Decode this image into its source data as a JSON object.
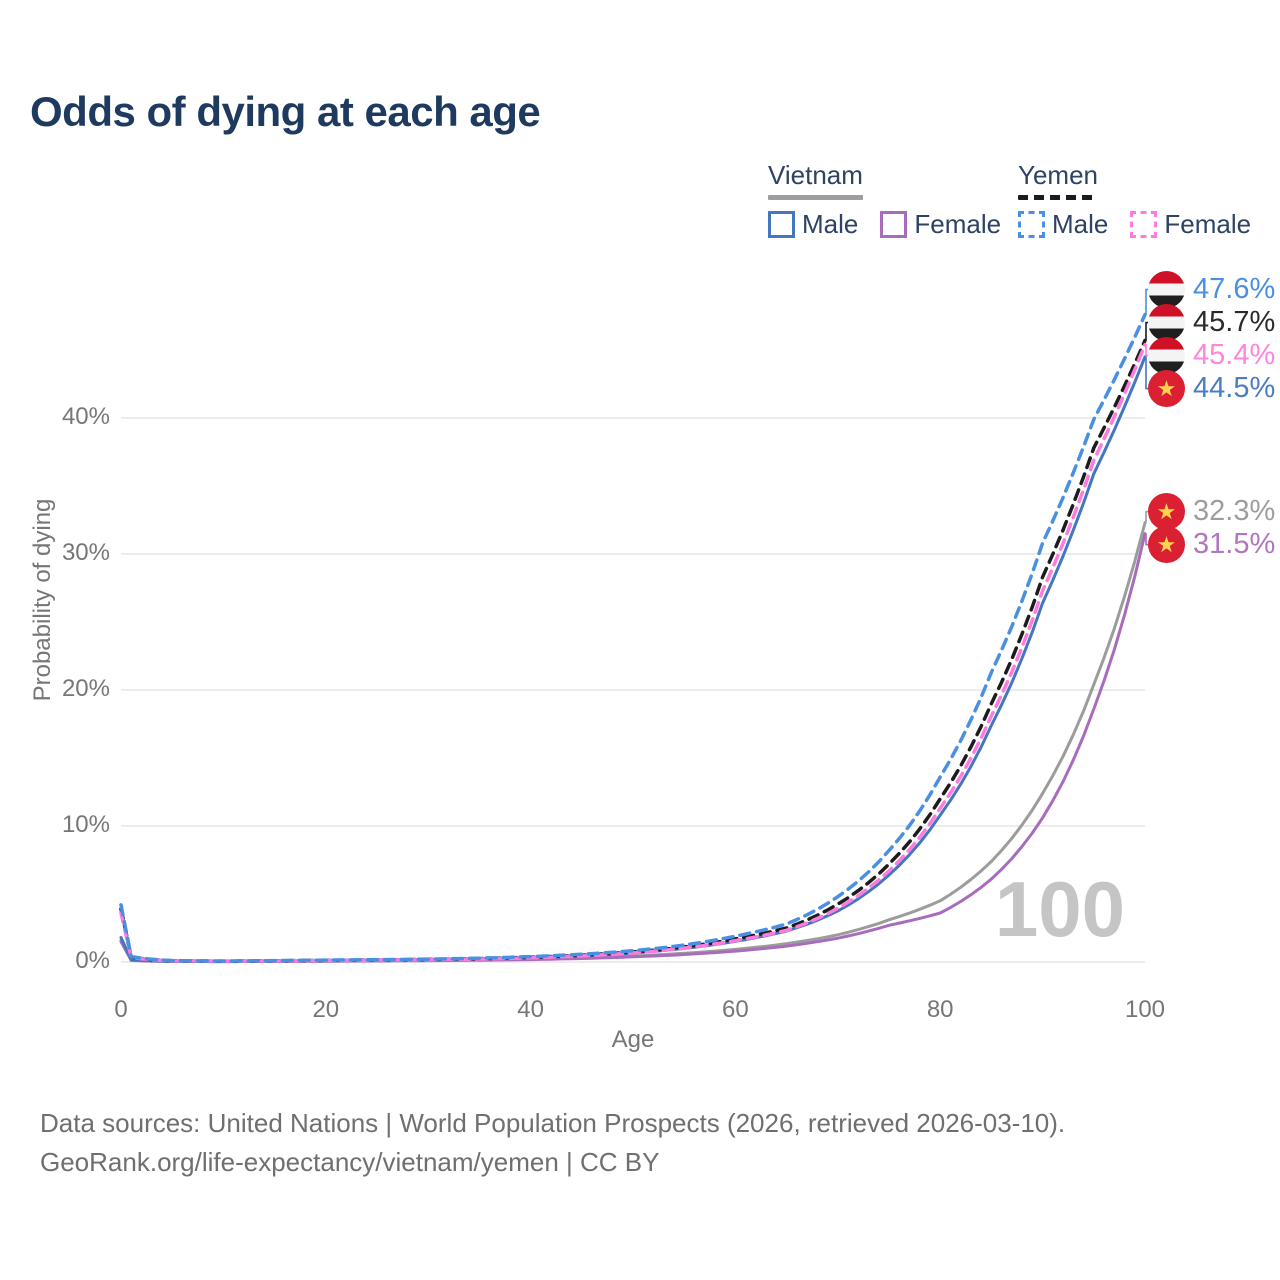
{
  "title": "Odds of dying at each age",
  "legend": {
    "groups": [
      {
        "country": "Vietnam",
        "line_style": "solid",
        "line_color": "#9e9e9e",
        "items": [
          {
            "id": "vietnam-male",
            "label": "Male"
          },
          {
            "id": "vietnam-female",
            "label": "Female"
          }
        ]
      },
      {
        "country": "Yemen",
        "line_style": "dashed",
        "line_color": "#1c1c1c",
        "items": [
          {
            "id": "yemen-male",
            "label": "Male"
          },
          {
            "id": "yemen-female",
            "label": "Female"
          }
        ]
      }
    ]
  },
  "chart_data": {
    "type": "line",
    "title": "Odds of dying at each age",
    "xlabel": "Age",
    "ylabel": "Probability of dying",
    "unit": "%",
    "xlim": [
      0,
      100
    ],
    "ylim": [
      0,
      48
    ],
    "grid": "horizontal",
    "legend_position": "top-right",
    "watermark": "100",
    "xticks": [
      {
        "v": 0,
        "label": "0"
      },
      {
        "v": 20,
        "label": "20"
      },
      {
        "v": 40,
        "label": "40"
      },
      {
        "v": 60,
        "label": "60"
      },
      {
        "v": 80,
        "label": "80"
      },
      {
        "v": 100,
        "label": "100"
      }
    ],
    "yticks": [
      {
        "v": 0,
        "label": "0%"
      },
      {
        "v": 10,
        "label": "10%"
      },
      {
        "v": 20,
        "label": "20%"
      },
      {
        "v": 30,
        "label": "30%"
      },
      {
        "v": 40,
        "label": "40%"
      }
    ],
    "ages": [
      0,
      1,
      5,
      10,
      15,
      20,
      25,
      30,
      35,
      40,
      45,
      50,
      55,
      60,
      65,
      70,
      75,
      80,
      85,
      90,
      95,
      100
    ],
    "series": [
      {
        "id": "vietnam-total",
        "name": "Vietnam (both sexes)",
        "country": "Vietnam",
        "color": "#9c9c9c",
        "dashed": false,
        "flag": "vietnam",
        "end_label": "32.3%",
        "label_color": "#9e9e9e",
        "values": [
          1.6,
          0.14,
          0.04,
          0.03,
          0.05,
          0.07,
          0.09,
          0.12,
          0.16,
          0.22,
          0.31,
          0.44,
          0.64,
          0.93,
          1.35,
          2.0,
          3.1,
          4.5,
          7.4,
          12.4,
          20.4,
          32.3
        ]
      },
      {
        "id": "vietnam-female",
        "name": "Vietnam Female",
        "country": "Vietnam",
        "color": "#a96cbd",
        "dashed": false,
        "flag": "vietnam",
        "end_label": "31.5%",
        "label_color": "#b077be",
        "values": [
          1.5,
          0.12,
          0.04,
          0.03,
          0.04,
          0.06,
          0.08,
          0.1,
          0.13,
          0.18,
          0.26,
          0.38,
          0.55,
          0.8,
          1.17,
          1.75,
          2.7,
          3.6,
          6.1,
          10.6,
          18.6,
          31.5
        ]
      },
      {
        "id": "vietnam-male",
        "name": "Vietnam Male",
        "country": "Vietnam",
        "color": "#4377bf",
        "dashed": false,
        "flag": "vietnam",
        "end_label": "44.5%",
        "label_color": "#4a7dc4",
        "values": [
          1.8,
          0.16,
          0.05,
          0.04,
          0.06,
          0.09,
          0.12,
          0.16,
          0.22,
          0.31,
          0.45,
          0.66,
          1.0,
          1.52,
          2.28,
          3.75,
          6.4,
          10.8,
          17.4,
          26.4,
          35.9,
          44.5
        ]
      },
      {
        "id": "yemen-total",
        "name": "Yemen (both sexes)",
        "country": "Yemen",
        "color": "#1c1c1c",
        "dashed": true,
        "flag": "yemen",
        "end_label": "45.7%",
        "label_color": "#2b2b2b",
        "values": [
          3.9,
          0.37,
          0.09,
          0.06,
          0.09,
          0.12,
          0.15,
          0.19,
          0.25,
          0.35,
          0.5,
          0.74,
          1.11,
          1.7,
          2.5,
          4.25,
          7.2,
          12.0,
          19.0,
          28.3,
          37.8,
          45.7
        ]
      },
      {
        "id": "yemen-female",
        "name": "Yemen Female",
        "country": "Yemen",
        "color": "#ff7ade",
        "dashed": true,
        "flag": "yemen",
        "end_label": "45.4%",
        "label_color": "#ff85de",
        "values": [
          3.6,
          0.34,
          0.08,
          0.06,
          0.08,
          0.11,
          0.14,
          0.17,
          0.22,
          0.31,
          0.45,
          0.67,
          1.02,
          1.57,
          2.33,
          3.95,
          6.7,
          11.3,
          18.1,
          27.3,
          36.9,
          45.4
        ]
      },
      {
        "id": "yemen-male",
        "name": "Yemen Male",
        "country": "Yemen",
        "color": "#4a90e2",
        "dashed": true,
        "flag": "yemen",
        "end_label": "47.6%",
        "label_color": "#4a90e2",
        "values": [
          4.2,
          0.4,
          0.1,
          0.07,
          0.1,
          0.14,
          0.17,
          0.21,
          0.28,
          0.4,
          0.57,
          0.83,
          1.25,
          1.9,
          2.8,
          4.8,
          8.2,
          13.6,
          21.3,
          30.8,
          39.9,
          47.6
        ]
      }
    ],
    "flag_colors": {
      "yemen": {
        "top": "#ce1126",
        "middle": "#f4f4f4",
        "bottom": "#1f1f1f"
      },
      "vietnam": {
        "bg": "#da2032",
        "star": "#ffd34d"
      }
    }
  },
  "footer": {
    "line1": "Data sources: United Nations | World Population Prospects (2026, retrieved 2026-03-10).",
    "line2": "GeoRank.org/life-expectancy/vietnam/yemen | CC BY"
  }
}
